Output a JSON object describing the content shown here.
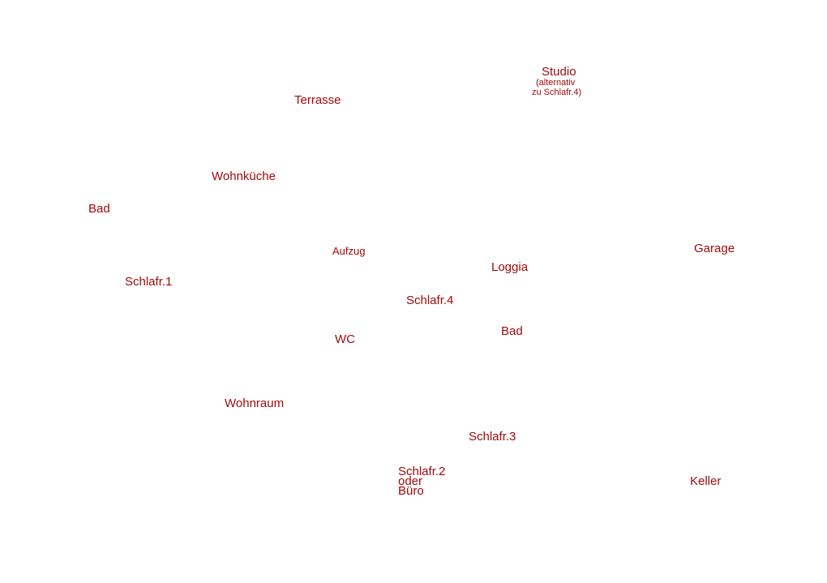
{
  "rooms": [
    {
      "label": "Studio",
      "note": [
        "(alternativ",
        "zu Schlafr.4)"
      ]
    },
    {
      "label": "Terrasse"
    },
    {
      "label": "Wohnküche"
    },
    {
      "label": "Bad"
    },
    {
      "label": "Aufzug"
    },
    {
      "label": "Garage"
    },
    {
      "label": "Loggia"
    },
    {
      "label": "Schlafr.1"
    },
    {
      "label": "Schlafr.4"
    },
    {
      "label": "Bad"
    },
    {
      "label": "WC"
    },
    {
      "label": "Wohnraum"
    },
    {
      "label": "Schlafr.3"
    },
    {
      "label": "Schlafr.2",
      "note": [
        "oder",
        "Büro"
      ]
    },
    {
      "label": "Keller"
    }
  ]
}
